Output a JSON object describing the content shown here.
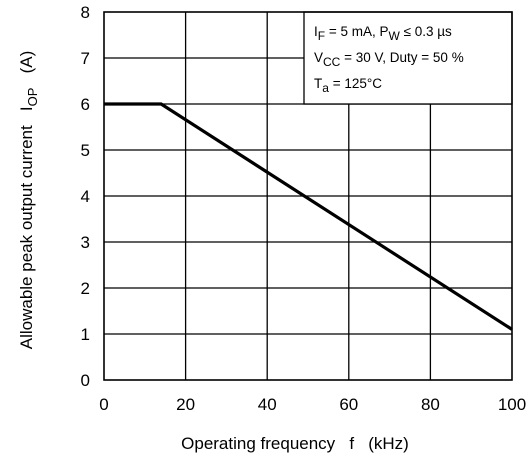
{
  "chart_data": {
    "type": "line",
    "title": "",
    "xlabel": "Operating frequency   f   (kHz)",
    "ylabel": {
      "main": "Allowable peak output current   I",
      "sub": "OP",
      "unit": "   (A)"
    },
    "xlim": [
      0,
      100
    ],
    "ylim": [
      0,
      8
    ],
    "xticks": [
      0,
      20,
      40,
      60,
      80,
      100
    ],
    "yticks": [
      0,
      1,
      2,
      3,
      4,
      5,
      6,
      7,
      8
    ],
    "grid": true,
    "series": [
      {
        "x": [
          0,
          14,
          100
        ],
        "y": [
          6.0,
          6.0,
          1.1
        ]
      }
    ],
    "annotations": [
      {
        "parts": [
          {
            "t": "I"
          },
          {
            "t": "F",
            "sub": true
          },
          {
            "t": " = 5 mA, P"
          },
          {
            "t": "W",
            "sub": true
          },
          {
            "t": " ≤ 0.3 µs"
          }
        ]
      },
      {
        "parts": [
          {
            "t": "V"
          },
          {
            "t": "CC",
            "sub": true
          },
          {
            "t": " = 30 V, Duty = 50 %"
          }
        ]
      },
      {
        "parts": [
          {
            "t": "T"
          },
          {
            "t": "a",
            "sub": true
          },
          {
            "t": " = 125°C"
          }
        ]
      }
    ],
    "legend_placement": "top-right"
  }
}
